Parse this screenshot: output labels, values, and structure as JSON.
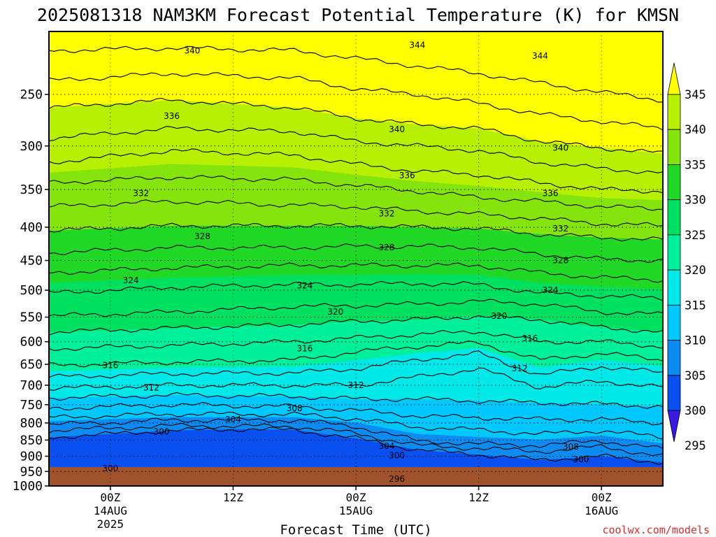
{
  "title": "2025081318 NAM3KM Forecast Potential Temperature (K) for KMSN",
  "credit": "coolwx.com/models",
  "colors": {
    "ground": "#a0522d",
    "fills": [
      "#1515d8",
      "#0a4ff0",
      "#0c8cf2",
      "#00c8ff",
      "#00e8e8",
      "#00ef9a",
      "#00e060",
      "#22d826",
      "#86e40e",
      "#b8f004",
      "#ffff00"
    ],
    "contour": "#000000"
  },
  "chart_data": {
    "type": "contour",
    "title": "2025081318 NAM3KM Forecast Potential Temperature (K) for KMSN",
    "xlabel": "Forecast Time (UTC)",
    "ylabel": "",
    "units": "K",
    "x_ticks": [
      {
        "label": "00Z",
        "sub": [
          "14AUG",
          "2025"
        ],
        "hour": 6
      },
      {
        "label": "12Z",
        "sub": [],
        "hour": 18
      },
      {
        "label": "00Z",
        "sub": [
          "15AUG"
        ],
        "hour": 30
      },
      {
        "label": "12Z",
        "sub": [],
        "hour": 42
      },
      {
        "label": "00Z",
        "sub": [
          "16AUG"
        ],
        "hour": 54
      }
    ],
    "xlim_hours": [
      0,
      60
    ],
    "y_ticks": [
      250,
      300,
      350,
      400,
      450,
      500,
      550,
      600,
      650,
      700,
      750,
      800,
      850,
      900,
      950,
      1000
    ],
    "ylim": [
      1000,
      200
    ],
    "y_scale": "log-pressure",
    "colorbar": {
      "levels": [
        295,
        300,
        305,
        310,
        315,
        320,
        325,
        330,
        335,
        340,
        345
      ],
      "extend": "both"
    },
    "contour_interval": 2,
    "isentropes": [
      {
        "theta": 296,
        "points": [
          [
            0,
            990
          ],
          [
            12,
            988
          ],
          [
            24,
            990
          ],
          [
            30,
            985
          ],
          [
            36,
            982
          ],
          [
            42,
            984
          ],
          [
            48,
            990
          ],
          [
            54,
            992
          ],
          [
            60,
            995
          ]
        ]
      },
      {
        "theta": 298,
        "points": [
          [
            0,
            965
          ],
          [
            12,
            962
          ],
          [
            24,
            965
          ],
          [
            30,
            955
          ],
          [
            36,
            948
          ],
          [
            42,
            952
          ],
          [
            48,
            970
          ],
          [
            54,
            975
          ],
          [
            60,
            978
          ]
        ]
      },
      {
        "theta": 300,
        "points": [
          [
            0,
            842
          ],
          [
            6,
            832
          ],
          [
            12,
            822
          ],
          [
            18,
            818
          ],
          [
            24,
            820
          ],
          [
            30,
            845
          ],
          [
            36,
            880
          ],
          [
            42,
            895
          ],
          [
            48,
            912
          ],
          [
            54,
            900
          ],
          [
            60,
            920
          ]
        ]
      },
      {
        "theta": 302,
        "points": [
          [
            0,
            822
          ],
          [
            12,
            808
          ],
          [
            24,
            810
          ],
          [
            30,
            830
          ],
          [
            36,
            866
          ],
          [
            42,
            875
          ],
          [
            48,
            885
          ],
          [
            54,
            870
          ],
          [
            60,
            900
          ]
        ]
      },
      {
        "theta": 304,
        "points": [
          [
            0,
            805
          ],
          [
            12,
            792
          ],
          [
            24,
            792
          ],
          [
            30,
            810
          ],
          [
            36,
            852
          ],
          [
            42,
            862
          ],
          [
            48,
            866
          ],
          [
            54,
            852
          ],
          [
            60,
            878
          ]
        ]
      },
      {
        "theta": 306,
        "points": [
          [
            0,
            785
          ],
          [
            12,
            775
          ],
          [
            24,
            776
          ],
          [
            30,
            788
          ],
          [
            36,
            812
          ],
          [
            42,
            820
          ],
          [
            48,
            832
          ],
          [
            54,
            822
          ],
          [
            60,
            842
          ]
        ]
      },
      {
        "theta": 308,
        "points": [
          [
            0,
            760
          ],
          [
            12,
            750
          ],
          [
            24,
            755
          ],
          [
            30,
            765
          ],
          [
            36,
            780
          ],
          [
            42,
            785
          ],
          [
            48,
            790
          ],
          [
            54,
            790
          ],
          [
            60,
            800
          ]
        ]
      },
      {
        "theta": 310,
        "points": [
          [
            0,
            732
          ],
          [
            12,
            725
          ],
          [
            24,
            728
          ],
          [
            30,
            735
          ],
          [
            36,
            735
          ],
          [
            42,
            740
          ],
          [
            48,
            745
          ],
          [
            54,
            748
          ],
          [
            60,
            755
          ]
        ]
      },
      {
        "theta": 312,
        "points": [
          [
            0,
            708
          ],
          [
            12,
            700
          ],
          [
            24,
            700
          ],
          [
            30,
            700
          ],
          [
            36,
            680
          ],
          [
            42,
            660
          ],
          [
            48,
            705
          ],
          [
            54,
            690
          ],
          [
            60,
            705
          ]
        ]
      },
      {
        "theta": 314,
        "points": [
          [
            0,
            680
          ],
          [
            12,
            672
          ],
          [
            24,
            670
          ],
          [
            30,
            660
          ],
          [
            36,
            640
          ],
          [
            42,
            625
          ],
          [
            48,
            675
          ],
          [
            54,
            655
          ],
          [
            60,
            670
          ]
        ]
      },
      {
        "theta": 316,
        "points": [
          [
            0,
            652
          ],
          [
            12,
            645
          ],
          [
            24,
            640
          ],
          [
            30,
            622
          ],
          [
            36,
            610
          ],
          [
            42,
            602
          ],
          [
            48,
            640
          ],
          [
            54,
            625
          ],
          [
            60,
            640
          ]
        ]
      },
      {
        "theta": 318,
        "points": [
          [
            0,
            615
          ],
          [
            12,
            608
          ],
          [
            24,
            600
          ],
          [
            30,
            592
          ],
          [
            36,
            585
          ],
          [
            42,
            578
          ],
          [
            48,
            600
          ],
          [
            54,
            600
          ],
          [
            60,
            610
          ]
        ]
      },
      {
        "theta": 320,
        "points": [
          [
            0,
            580
          ],
          [
            12,
            572
          ],
          [
            24,
            565
          ],
          [
            30,
            558
          ],
          [
            36,
            555
          ],
          [
            42,
            548
          ],
          [
            48,
            555
          ],
          [
            54,
            570
          ],
          [
            60,
            580
          ]
        ]
      },
      {
        "theta": 322,
        "points": [
          [
            0,
            548
          ],
          [
            12,
            540
          ],
          [
            24,
            530
          ],
          [
            30,
            528
          ],
          [
            36,
            525
          ],
          [
            42,
            520
          ],
          [
            48,
            525
          ],
          [
            54,
            540
          ],
          [
            60,
            545
          ]
        ]
      },
      {
        "theta": 324,
        "points": [
          [
            0,
            505
          ],
          [
            12,
            495
          ],
          [
            24,
            490
          ],
          [
            30,
            490
          ],
          [
            36,
            488
          ],
          [
            42,
            490
          ],
          [
            48,
            505
          ],
          [
            54,
            510
          ],
          [
            60,
            515
          ]
        ]
      },
      {
        "theta": 326,
        "points": [
          [
            0,
            470
          ],
          [
            12,
            462
          ],
          [
            24,
            458
          ],
          [
            30,
            458
          ],
          [
            36,
            458
          ],
          [
            42,
            458
          ],
          [
            48,
            470
          ],
          [
            54,
            478
          ],
          [
            60,
            482
          ]
        ]
      },
      {
        "theta": 328,
        "points": [
          [
            0,
            438
          ],
          [
            12,
            430
          ],
          [
            24,
            430
          ],
          [
            30,
            428
          ],
          [
            36,
            428
          ],
          [
            42,
            430
          ],
          [
            48,
            440
          ],
          [
            54,
            448
          ],
          [
            60,
            450
          ]
        ]
      },
      {
        "theta": 330,
        "points": [
          [
            0,
            405
          ],
          [
            12,
            398
          ],
          [
            24,
            398
          ],
          [
            30,
            398
          ],
          [
            36,
            400
          ],
          [
            42,
            402
          ],
          [
            48,
            410
          ],
          [
            54,
            415
          ],
          [
            60,
            418
          ]
        ]
      },
      {
        "theta": 332,
        "points": [
          [
            0,
            372
          ],
          [
            12,
            365
          ],
          [
            24,
            370
          ],
          [
            30,
            372
          ],
          [
            36,
            378
          ],
          [
            42,
            382
          ],
          [
            48,
            388
          ],
          [
            54,
            395
          ],
          [
            60,
            398
          ]
        ]
      },
      {
        "theta": 334,
        "points": [
          [
            0,
            342
          ],
          [
            12,
            335
          ],
          [
            24,
            338
          ],
          [
            30,
            345
          ],
          [
            36,
            352
          ],
          [
            42,
            360
          ],
          [
            48,
            365
          ],
          [
            54,
            372
          ],
          [
            60,
            375
          ]
        ]
      },
      {
        "theta": 336,
        "points": [
          [
            0,
            318
          ],
          [
            12,
            305
          ],
          [
            24,
            310
          ],
          [
            30,
            320
          ],
          [
            36,
            328
          ],
          [
            42,
            332
          ],
          [
            48,
            342
          ],
          [
            54,
            350
          ],
          [
            60,
            352
          ]
        ]
      },
      {
        "theta": 338,
        "points": [
          [
            0,
            292
          ],
          [
            12,
            282
          ],
          [
            24,
            285
          ],
          [
            30,
            295
          ],
          [
            36,
            300
          ],
          [
            42,
            305
          ],
          [
            48,
            318
          ],
          [
            54,
            325
          ],
          [
            60,
            330
          ]
        ]
      },
      {
        "theta": 340,
        "points": [
          [
            0,
            262
          ],
          [
            12,
            255
          ],
          [
            24,
            262
          ],
          [
            30,
            272
          ],
          [
            36,
            278
          ],
          [
            42,
            282
          ],
          [
            48,
            295
          ],
          [
            54,
            302
          ],
          [
            60,
            308
          ]
        ]
      },
      {
        "theta": 342,
        "points": [
          [
            0,
            238
          ],
          [
            12,
            232
          ],
          [
            24,
            236
          ],
          [
            30,
            245
          ],
          [
            36,
            250
          ],
          [
            42,
            258
          ],
          [
            48,
            268
          ],
          [
            54,
            275
          ],
          [
            60,
            282
          ]
        ]
      },
      {
        "theta": 344,
        "points": [
          [
            0,
            214
          ],
          [
            12,
            212
          ],
          [
            24,
            214
          ],
          [
            30,
            220
          ],
          [
            36,
            226
          ],
          [
            42,
            232
          ],
          [
            48,
            240
          ],
          [
            54,
            248
          ],
          [
            60,
            255
          ]
        ]
      }
    ],
    "contour_labels": [
      {
        "text": "340",
        "hour": 14,
        "p": 214
      },
      {
        "text": "344",
        "hour": 36,
        "p": 210
      },
      {
        "text": "344",
        "hour": 48,
        "p": 218
      },
      {
        "text": "336",
        "hour": 12,
        "p": 270
      },
      {
        "text": "340",
        "hour": 34,
        "p": 283
      },
      {
        "text": "340",
        "hour": 50,
        "p": 302
      },
      {
        "text": "336",
        "hour": 35,
        "p": 333
      },
      {
        "text": "336",
        "hour": 49,
        "p": 355
      },
      {
        "text": "332",
        "hour": 9,
        "p": 355
      },
      {
        "text": "332",
        "hour": 33,
        "p": 381
      },
      {
        "text": "332",
        "hour": 50,
        "p": 402
      },
      {
        "text": "328",
        "hour": 15,
        "p": 413
      },
      {
        "text": "328",
        "hour": 33,
        "p": 430
      },
      {
        "text": "328",
        "hour": 50,
        "p": 450
      },
      {
        "text": "324",
        "hour": 8,
        "p": 483
      },
      {
        "text": "324",
        "hour": 25,
        "p": 492
      },
      {
        "text": "324",
        "hour": 49,
        "p": 500
      },
      {
        "text": "320",
        "hour": 28,
        "p": 540
      },
      {
        "text": "320",
        "hour": 44,
        "p": 548
      },
      {
        "text": "316",
        "hour": 25,
        "p": 615
      },
      {
        "text": "316",
        "hour": 47,
        "p": 593
      },
      {
        "text": "316",
        "hour": 6,
        "p": 652
      },
      {
        "text": "312",
        "hour": 10,
        "p": 706
      },
      {
        "text": "312",
        "hour": 30,
        "p": 700
      },
      {
        "text": "312",
        "hour": 46,
        "p": 660
      },
      {
        "text": "308",
        "hour": 24,
        "p": 760
      },
      {
        "text": "308",
        "hour": 51,
        "p": 870
      },
      {
        "text": "304",
        "hour": 18,
        "p": 790
      },
      {
        "text": "304",
        "hour": 33,
        "p": 868
      },
      {
        "text": "300",
        "hour": 11,
        "p": 825
      },
      {
        "text": "300",
        "hour": 34,
        "p": 898
      },
      {
        "text": "300",
        "hour": 52,
        "p": 910
      },
      {
        "text": "300",
        "hour": 6,
        "p": 940
      },
      {
        "text": "296",
        "hour": 34,
        "p": 975
      }
    ]
  }
}
